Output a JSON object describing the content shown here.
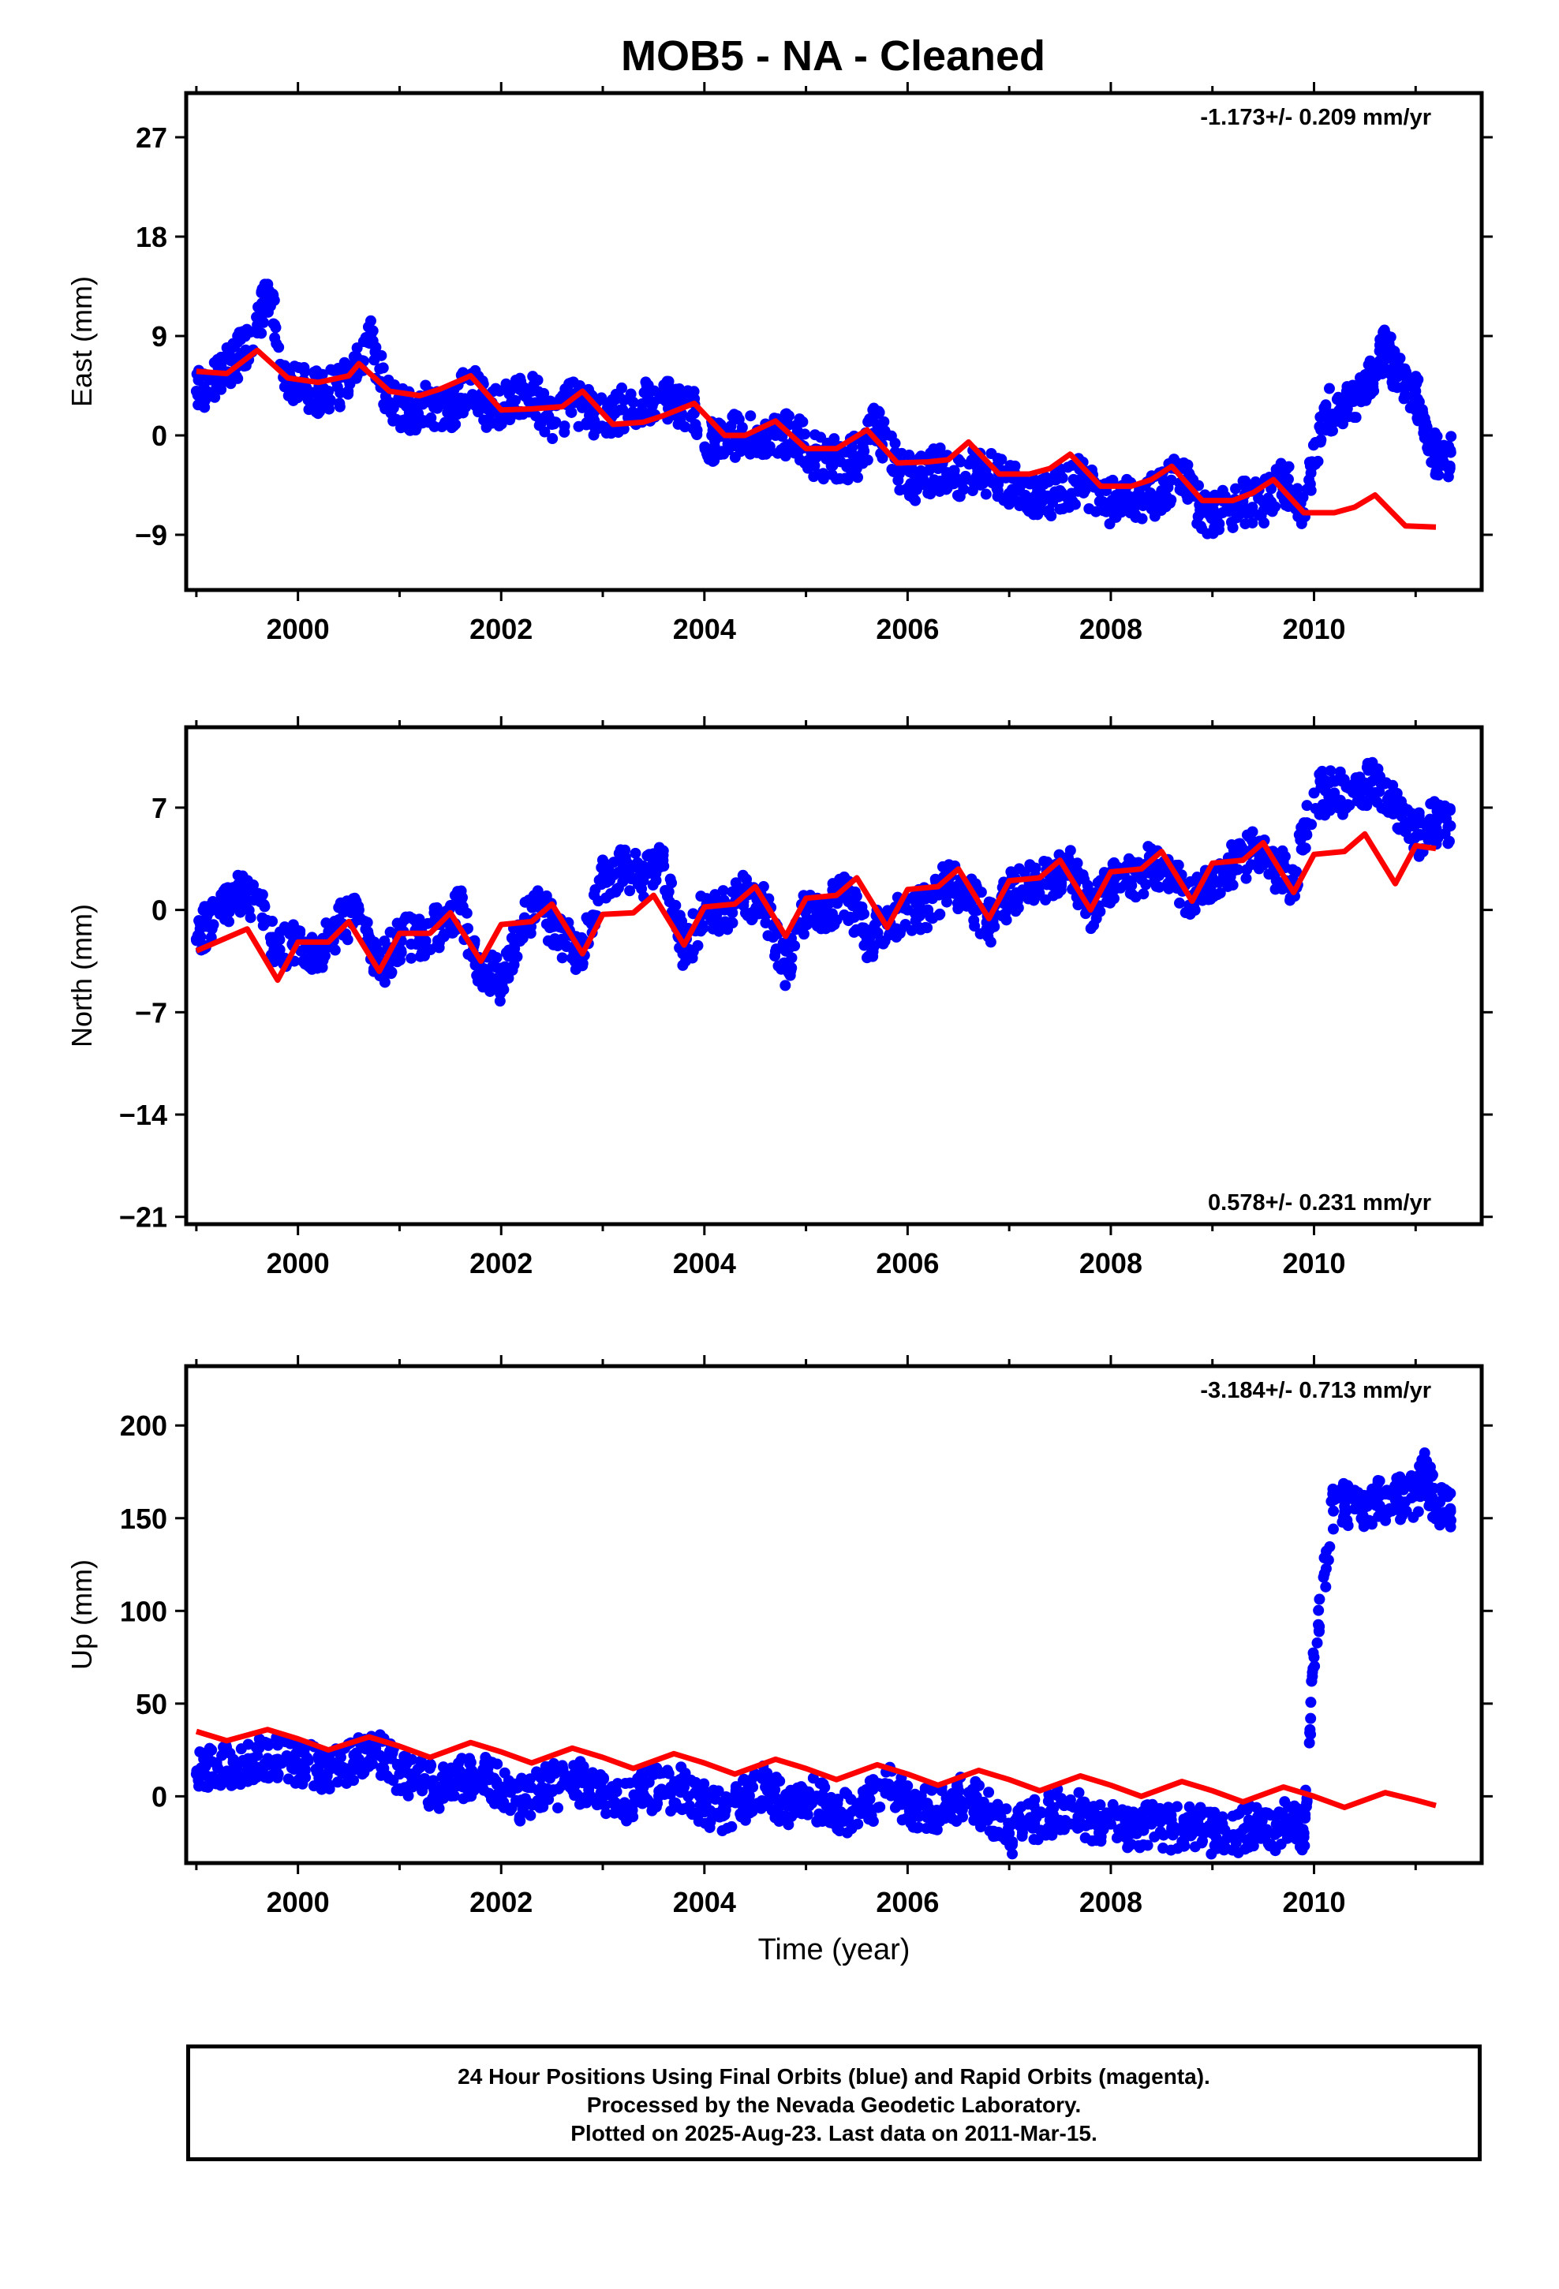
{
  "title": "MOB5  - NA - Cleaned",
  "colors": {
    "data": "#0000ff",
    "model": "#ff0000",
    "frame": "#000000"
  },
  "chart_data": [
    {
      "type": "scatter",
      "ylabel": "East (mm)",
      "xlabel": "",
      "xlim": [
        1998.9,
        2011.65
      ],
      "ylim": [
        -14,
        31
      ],
      "yticks": [
        27,
        18,
        9,
        0,
        -9
      ],
      "xticks": [
        2000,
        2002,
        2004,
        2006,
        2008,
        2010
      ],
      "rate_label": "-1.173+/- 0.209 mm/yr",
      "series": [
        {
          "kind": "scatter",
          "x": [
            1999.0,
            1999.2,
            1999.4,
            1999.6,
            1999.7,
            1999.9,
            2000.1,
            2000.3,
            2000.5,
            2000.7,
            2000.9,
            2001.1,
            2001.3,
            2001.5,
            2001.7,
            2001.9,
            2002.1,
            2002.3,
            2002.5,
            2002.7,
            2002.9,
            2003.1,
            2003.3,
            2003.5,
            2003.7,
            2003.9,
            2004.1,
            2004.3,
            2004.5,
            2004.7,
            2004.9,
            2005.1,
            2005.3,
            2005.5,
            2005.7,
            2005.9,
            2006.1,
            2006.3,
            2006.5,
            2006.7,
            2006.9,
            2007.1,
            2007.3,
            2007.5,
            2007.7,
            2007.9,
            2008.1,
            2008.3,
            2008.5,
            2008.7,
            2008.9,
            2009.1,
            2009.3,
            2009.5,
            2009.7,
            2009.9,
            2010.1,
            2010.3,
            2010.5,
            2010.6,
            2010.7,
            2010.8,
            2011.0,
            2011.1,
            2011.2
          ],
          "y": [
            4,
            5,
            7,
            10,
            13,
            5,
            4,
            4,
            5,
            9,
            3,
            2,
            3,
            2,
            5,
            2,
            3,
            4,
            1,
            3,
            2,
            2,
            3,
            3,
            3,
            2,
            -1,
            0,
            0,
            0,
            0,
            -2,
            -2,
            -2,
            1,
            -3,
            -4,
            -3,
            -4,
            -3,
            -4,
            -5,
            -6,
            -5,
            -4,
            -6,
            -6,
            -6,
            -5,
            -3,
            -7,
            -7,
            -6,
            -6,
            -4,
            -7,
            2,
            3,
            4,
            6,
            8,
            6,
            4,
            1,
            -2
          ]
        },
        {
          "kind": "line",
          "x": [
            1999.0,
            1999.3,
            1999.6,
            1999.9,
            2000.2,
            2000.5,
            2000.6,
            2000.9,
            2001.2,
            2001.4,
            2001.7,
            2002.0,
            2002.3,
            2002.6,
            2002.8,
            2003.1,
            2003.4,
            2003.6,
            2003.9,
            2004.2,
            2004.4,
            2004.7,
            2005.0,
            2005.3,
            2005.6,
            2005.9,
            2006.2,
            2006.4,
            2006.6,
            2006.9,
            2007.2,
            2007.4,
            2007.6,
            2007.9,
            2008.2,
            2008.4,
            2008.6,
            2008.9,
            2009.2,
            2009.4,
            2009.6,
            2009.9,
            2010.2,
            2010.4,
            2010.6,
            2010.9,
            2011.2
          ],
          "y": [
            5.8,
            5.6,
            7.7,
            5.2,
            4.8,
            5.4,
            6.5,
            4.0,
            3.6,
            4.2,
            5.4,
            2.3,
            2.4,
            2.6,
            4.0,
            1.0,
            1.2,
            1.8,
            2.9,
            0,
            0,
            1.3,
            -1.2,
            -1.2,
            0.5,
            -2.5,
            -2.4,
            -2.2,
            -0.6,
            -3.5,
            -3.5,
            -3.0,
            -1.7,
            -4.6,
            -4.6,
            -4.0,
            -2.8,
            -5.9,
            -5.9,
            -5.2,
            -4.0,
            -7.0,
            -7.0,
            -6.5,
            -5.4,
            -8.2,
            -8.3
          ]
        }
      ]
    },
    {
      "type": "scatter",
      "ylabel": "North (mm)",
      "xlabel": "",
      "xlim": [
        1998.9,
        2011.65
      ],
      "ylim": [
        -21.5,
        12.5
      ],
      "yticks": [
        7,
        0,
        -7,
        -14,
        -21
      ],
      "xticks": [
        2000,
        2002,
        2004,
        2006,
        2008,
        2010
      ],
      "rate_label": "0.578+/- 0.231 mm/yr",
      "series": [
        {
          "kind": "scatter",
          "x": [
            1999.0,
            1999.2,
            1999.4,
            1999.6,
            1999.8,
            2000.0,
            2000.2,
            2000.4,
            2000.6,
            2000.8,
            2001.0,
            2001.2,
            2001.4,
            2001.6,
            2001.8,
            2002.0,
            2002.2,
            2002.4,
            2002.6,
            2002.8,
            2003.0,
            2003.2,
            2003.4,
            2003.6,
            2003.8,
            2004.0,
            2004.2,
            2004.4,
            2004.6,
            2004.8,
            2005.0,
            2005.2,
            2005.4,
            2005.6,
            2005.8,
            2006.0,
            2006.2,
            2006.4,
            2006.6,
            2006.8,
            2007.0,
            2007.2,
            2007.4,
            2007.6,
            2007.8,
            2008.0,
            2008.2,
            2008.4,
            2008.6,
            2008.8,
            2009.0,
            2009.2,
            2009.4,
            2009.6,
            2009.8,
            2010.0,
            2010.2,
            2010.4,
            2010.6,
            2010.8,
            2011.0,
            2011.2
          ],
          "y": [
            -2,
            0,
            1,
            1,
            -3,
            -2,
            -3,
            -1,
            0,
            -4,
            -2,
            -2,
            -1,
            0,
            -4,
            -5,
            -1,
            0,
            -2,
            -3,
            2,
            3,
            2,
            3,
            -3,
            0,
            0,
            1,
            0,
            -4,
            0,
            0,
            1,
            -2,
            -1,
            0,
            0,
            2,
            1,
            -1,
            1,
            2,
            2,
            3,
            0,
            2,
            2,
            3,
            2,
            1,
            2,
            3,
            4,
            3,
            2,
            8,
            8,
            8,
            9,
            7,
            5,
            6
          ]
        },
        {
          "kind": "line",
          "x": [
            1999.0,
            1999.2,
            1999.5,
            1999.8,
            2000.0,
            2000.3,
            2000.5,
            2000.8,
            2001.0,
            2001.3,
            2001.5,
            2001.8,
            2002.0,
            2002.3,
            2002.5,
            2002.8,
            2003.0,
            2003.3,
            2003.5,
            2003.8,
            2004.0,
            2004.3,
            2004.5,
            2004.8,
            2005.0,
            2005.3,
            2005.5,
            2005.8,
            2006.0,
            2006.3,
            2006.5,
            2006.8,
            2007.0,
            2007.3,
            2007.5,
            2007.8,
            2008.0,
            2008.3,
            2008.5,
            2008.8,
            2009.0,
            2009.3,
            2009.5,
            2009.8,
            2010.0,
            2010.3,
            2010.5,
            2010.8,
            2011.0,
            2011.2
          ],
          "y": [
            -2.8,
            -2.2,
            -1.3,
            -4.8,
            -2.2,
            -2.2,
            -0.8,
            -4.2,
            -1.6,
            -1.6,
            -0.2,
            -3.5,
            -1.0,
            -0.8,
            0.4,
            -3.0,
            -0.3,
            -0.2,
            1.0,
            -2.4,
            0.2,
            0.4,
            1.6,
            -1.8,
            0.8,
            1.0,
            2.2,
            -1.2,
            1.4,
            1.6,
            2.8,
            -0.6,
            2.0,
            2.2,
            3.4,
            0.0,
            2.6,
            2.8,
            4.0,
            0.6,
            3.2,
            3.4,
            4.6,
            1.2,
            3.8,
            4.0,
            5.2,
            1.8,
            4.4,
            4.2
          ]
        }
      ]
    },
    {
      "type": "scatter",
      "ylabel": "Up (mm)",
      "xlabel": "Time (year)",
      "xlim": [
        1998.9,
        2011.65
      ],
      "ylim": [
        -36,
        232
      ],
      "yticks": [
        200,
        150,
        100,
        50,
        0
      ],
      "xticks": [
        2000,
        2002,
        2004,
        2006,
        2008,
        2010
      ],
      "rate_label": "-3.184+/- 0.713 mm/yr",
      "series": [
        {
          "kind": "scatter",
          "x": [
            1999.0,
            1999.2,
            1999.4,
            1999.6,
            1999.8,
            2000.0,
            2000.2,
            2000.4,
            2000.6,
            2000.8,
            2001.0,
            2001.2,
            2001.4,
            2001.6,
            2001.8,
            2002.0,
            2002.2,
            2002.4,
            2002.6,
            2002.8,
            2003.0,
            2003.2,
            2003.4,
            2003.6,
            2003.8,
            2004.0,
            2004.2,
            2004.4,
            2004.6,
            2004.8,
            2005.0,
            2005.2,
            2005.4,
            2005.6,
            2005.8,
            2006.0,
            2006.2,
            2006.4,
            2006.6,
            2006.8,
            2007.0,
            2007.2,
            2007.4,
            2007.6,
            2007.8,
            2008.0,
            2008.2,
            2008.4,
            2008.6,
            2008.8,
            2009.0,
            2009.2,
            2009.4,
            2009.6,
            2009.8,
            2009.9,
            2010.0,
            2010.2,
            2010.4,
            2010.6,
            2010.8,
            2011.0,
            2011.1,
            2011.2
          ],
          "y": [
            12,
            18,
            15,
            22,
            20,
            18,
            15,
            14,
            20,
            22,
            12,
            8,
            5,
            10,
            12,
            5,
            -2,
            5,
            6,
            8,
            0,
            -5,
            5,
            3,
            5,
            -5,
            -10,
            -2,
            5,
            -5,
            0,
            -5,
            -10,
            -5,
            5,
            -5,
            -8,
            -5,
            2,
            -10,
            -20,
            -15,
            -10,
            -5,
            -15,
            -15,
            -20,
            -15,
            -18,
            -15,
            -20,
            -22,
            -15,
            -20,
            -10,
            -22,
            75,
            160,
            155,
            158,
            160,
            162,
            175,
            155
          ]
        },
        {
          "kind": "line",
          "x": [
            1999.0,
            1999.3,
            1999.7,
            2000.0,
            2000.3,
            2000.7,
            2001.0,
            2001.3,
            2001.7,
            2002.0,
            2002.3,
            2002.7,
            2003.0,
            2003.3,
            2003.7,
            2004.0,
            2004.3,
            2004.7,
            2005.0,
            2005.3,
            2005.7,
            2006.0,
            2006.3,
            2006.7,
            2007.0,
            2007.3,
            2007.7,
            2008.0,
            2008.3,
            2008.7,
            2009.0,
            2009.3,
            2009.7,
            2010.0,
            2010.3,
            2010.7,
            2011.0,
            2011.2
          ],
          "y": [
            35,
            30,
            36,
            31,
            25,
            32,
            27,
            21,
            29,
            24,
            18,
            26,
            21,
            15,
            23,
            18,
            12,
            20,
            15,
            9,
            17,
            12,
            6,
            14,
            9,
            3,
            11,
            6,
            0,
            8,
            3,
            -3,
            5,
            0,
            -6,
            2,
            -2,
            -5
          ]
        }
      ]
    }
  ],
  "footer": {
    "line1": "24 Hour Positions Using Final Orbits (blue) and Rapid Orbits (magenta).",
    "line2": "Processed by the Nevada Geodetic Laboratory.",
    "line3": "Plotted on 2025-Aug-23. Last data on 2011-Mar-15."
  }
}
